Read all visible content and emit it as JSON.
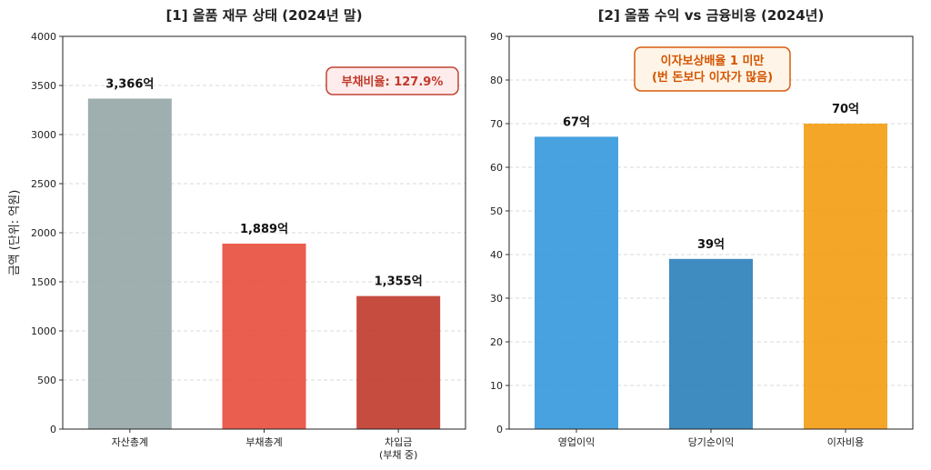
{
  "chart_data": [
    {
      "type": "bar",
      "title": "[1] 올품 재무 상태 (2024년 말)",
      "xlabel": "",
      "ylabel": "금액 (단위: 억원)",
      "categories": [
        "자산총계",
        "부채총계",
        "차입금\n(부채 중)"
      ],
      "values": [
        3366,
        1889,
        1355
      ],
      "data_labels": [
        "3,366억",
        "1,889억",
        "1,355억"
      ],
      "colors": [
        "#95a5a6",
        "#e74c3c",
        "#c0392b"
      ],
      "ylim": [
        0,
        4000
      ],
      "yticks": [
        0,
        500,
        1000,
        1500,
        2000,
        2500,
        3000,
        3500,
        4000
      ],
      "grid": "y-dashed",
      "annotation": {
        "text": "부채비율: 127.9%",
        "color": "#c0392b",
        "bg": "#fdecea"
      }
    },
    {
      "type": "bar",
      "title": "[2] 올품 수익 vs 금융비용 (2024년)",
      "xlabel": "",
      "ylabel": "",
      "categories": [
        "영업이익",
        "당기순이익",
        "이자비용"
      ],
      "values": [
        67,
        39,
        70
      ],
      "data_labels": [
        "67억",
        "39억",
        "70억"
      ],
      "colors": [
        "#3498db",
        "#2980b9",
        "#f39c12"
      ],
      "ylim": [
        0,
        90
      ],
      "yticks": [
        0,
        10,
        20,
        30,
        40,
        50,
        60,
        70,
        80,
        90
      ],
      "grid": "y-dashed",
      "annotation": {
        "text": "이자보상배율 1 미만\n(번 돈보다 이자가 많음)",
        "color": "#d35400",
        "bg": "#fef5e7"
      }
    }
  ]
}
